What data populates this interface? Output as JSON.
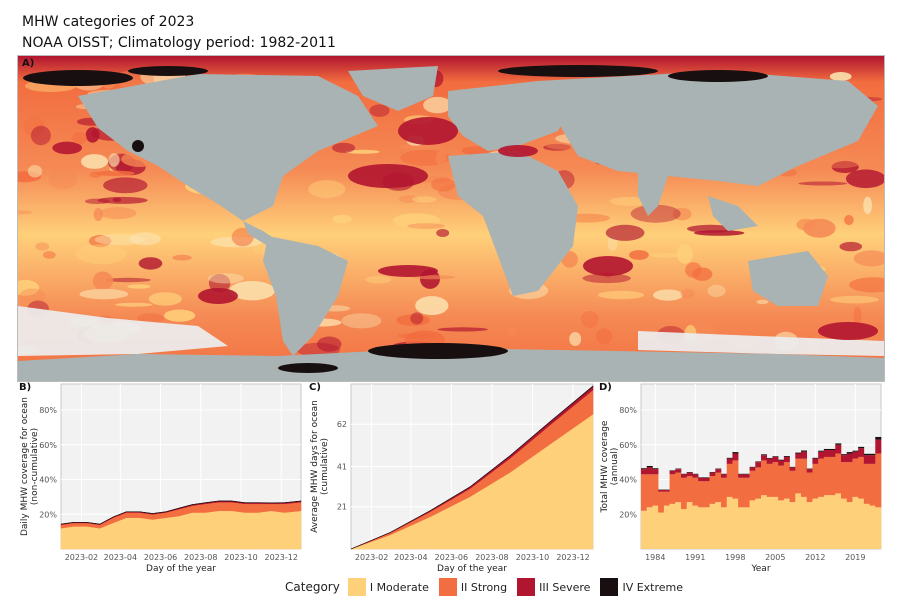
{
  "title": "MHW categories of 2023",
  "subtitle": "NOAA OISST; Climatology period: 1982-2011",
  "colors": {
    "moderate": "#ffd07a",
    "strong": "#f26d3f",
    "severe": "#b21530",
    "extreme": "#181010",
    "land": "#a9b3b3",
    "ice": "#f1f1f1",
    "panel_bg": "#f2f2f2",
    "grid": "#e0e0e0"
  },
  "map": {
    "panel_label": "A)"
  },
  "legend": {
    "title": "Category",
    "items": [
      {
        "label": "I Moderate",
        "color": "#ffd07a"
      },
      {
        "label": "II Strong",
        "color": "#f26d3f"
      },
      {
        "label": "III Severe",
        "color": "#b21530"
      },
      {
        "label": "IV Extreme",
        "color": "#181010"
      }
    ]
  },
  "chart_data": [
    {
      "panel_label": "B)",
      "type": "area",
      "xlabel": "Day of the year",
      "ylabel": "Daily MHW coverage for ocean\n(non-cumulative)",
      "x_ticks": [
        "2023-02",
        "2023-04",
        "2023-06",
        "2023-08",
        "2023-10",
        "2023-12"
      ],
      "x_tick_positions": [
        32,
        91,
        152,
        213,
        274,
        335
      ],
      "y_ticks": [
        "20%",
        "40%",
        "60%",
        "80%"
      ],
      "y_tick_values": [
        0.2,
        0.4,
        0.6,
        0.8
      ],
      "xlim": [
        1,
        365
      ],
      "ylim": [
        0.0,
        0.95
      ],
      "x": [
        1,
        20,
        40,
        60,
        80,
        100,
        120,
        140,
        160,
        180,
        200,
        220,
        240,
        260,
        280,
        300,
        320,
        340,
        365
      ],
      "series": [
        {
          "name": "I Moderate",
          "values": [
            0.12,
            0.13,
            0.13,
            0.12,
            0.15,
            0.18,
            0.18,
            0.17,
            0.18,
            0.19,
            0.21,
            0.21,
            0.22,
            0.22,
            0.21,
            0.21,
            0.22,
            0.21,
            0.22
          ]
        },
        {
          "name": "II Strong",
          "values": [
            0.02,
            0.02,
            0.02,
            0.02,
            0.03,
            0.03,
            0.03,
            0.03,
            0.03,
            0.04,
            0.04,
            0.05,
            0.05,
            0.05,
            0.05,
            0.05,
            0.04,
            0.05,
            0.05
          ]
        },
        {
          "name": "III Severe",
          "values": [
            0.003,
            0.003,
            0.003,
            0.003,
            0.004,
            0.004,
            0.004,
            0.004,
            0.004,
            0.005,
            0.005,
            0.006,
            0.006,
            0.006,
            0.006,
            0.006,
            0.005,
            0.006,
            0.006
          ]
        },
        {
          "name": "IV Extreme",
          "values": [
            0.001,
            0.001,
            0.001,
            0.001,
            0.001,
            0.001,
            0.001,
            0.001,
            0.001,
            0.001,
            0.001,
            0.001,
            0.001,
            0.001,
            0.001,
            0.001,
            0.001,
            0.001,
            0.001
          ]
        }
      ]
    },
    {
      "panel_label": "C)",
      "type": "area",
      "xlabel": "Day of the year",
      "ylabel": "Average MHW days for ocean\n(cumulative)",
      "x_ticks": [
        "2023-02",
        "2023-04",
        "2023-06",
        "2023-08",
        "2023-10",
        "2023-12"
      ],
      "x_tick_positions": [
        32,
        91,
        152,
        213,
        274,
        335
      ],
      "y_ticks": [
        "21",
        "41",
        "62"
      ],
      "y_tick_values": [
        21,
        41,
        62
      ],
      "xlim": [
        1,
        365
      ],
      "ylim": [
        0,
        82
      ],
      "x": [
        1,
        60,
        120,
        180,
        240,
        300,
        365
      ],
      "series": [
        {
          "name": "I Moderate",
          "values": [
            0,
            7,
            16,
            26,
            38,
            52,
            67
          ]
        },
        {
          "name": "II Strong",
          "values": [
            0,
            1,
            2.5,
            4,
            7,
            9.5,
            12
          ]
        },
        {
          "name": "III Severe",
          "values": [
            0,
            0.2,
            0.5,
            0.8,
            1.2,
            1.5,
            1.8
          ]
        },
        {
          "name": "IV Extreme",
          "values": [
            0,
            0.05,
            0.1,
            0.15,
            0.2,
            0.25,
            0.3
          ]
        }
      ]
    },
    {
      "panel_label": "D)",
      "type": "bar",
      "stacked": true,
      "xlabel": "Year",
      "ylabel": "Total MHW coverage\n(annual)",
      "x_ticks": [
        "1984",
        "1991",
        "1998",
        "2005",
        "2012",
        "2019"
      ],
      "y_ticks": [
        "20%",
        "40%",
        "60%",
        "80%"
      ],
      "y_tick_values": [
        0.2,
        0.4,
        0.6,
        0.8
      ],
      "ylim": [
        0.0,
        0.95
      ],
      "categories": [
        1982,
        1983,
        1984,
        1985,
        1986,
        1987,
        1988,
        1989,
        1990,
        1991,
        1992,
        1993,
        1994,
        1995,
        1996,
        1997,
        1998,
        1999,
        2000,
        2001,
        2002,
        2003,
        2004,
        2005,
        2006,
        2007,
        2008,
        2009,
        2010,
        2011,
        2012,
        2013,
        2014,
        2015,
        2016,
        2017,
        2018,
        2019,
        2020,
        2021,
        2022,
        2023
      ],
      "series": [
        {
          "name": "I Moderate",
          "values": [
            0.22,
            0.24,
            0.25,
            0.21,
            0.25,
            0.26,
            0.27,
            0.23,
            0.27,
            0.25,
            0.24,
            0.24,
            0.26,
            0.27,
            0.24,
            0.3,
            0.29,
            0.24,
            0.24,
            0.28,
            0.29,
            0.31,
            0.3,
            0.3,
            0.28,
            0.29,
            0.27,
            0.32,
            0.3,
            0.27,
            0.29,
            0.3,
            0.31,
            0.31,
            0.32,
            0.29,
            0.27,
            0.3,
            0.29,
            0.26,
            0.25,
            0.24
          ]
        },
        {
          "name": "II Strong",
          "values": [
            0.21,
            0.19,
            0.18,
            0.12,
            0.08,
            0.17,
            0.17,
            0.18,
            0.15,
            0.16,
            0.15,
            0.15,
            0.16,
            0.17,
            0.17,
            0.19,
            0.22,
            0.17,
            0.17,
            0.17,
            0.18,
            0.2,
            0.19,
            0.2,
            0.2,
            0.21,
            0.18,
            0.2,
            0.22,
            0.17,
            0.2,
            0.22,
            0.22,
            0.22,
            0.23,
            0.21,
            0.23,
            0.22,
            0.24,
            0.23,
            0.24,
            0.31
          ]
        },
        {
          "name": "III Severe",
          "values": [
            0.03,
            0.04,
            0.03,
            0.01,
            0.01,
            0.02,
            0.02,
            0.02,
            0.02,
            0.02,
            0.02,
            0.02,
            0.02,
            0.02,
            0.02,
            0.03,
            0.04,
            0.02,
            0.02,
            0.02,
            0.03,
            0.03,
            0.03,
            0.03,
            0.03,
            0.03,
            0.02,
            0.03,
            0.04,
            0.02,
            0.03,
            0.04,
            0.04,
            0.04,
            0.05,
            0.04,
            0.05,
            0.04,
            0.05,
            0.05,
            0.05,
            0.08
          ]
        },
        {
          "name": "IV Extreme",
          "values": [
            0.005,
            0.008,
            0.005,
            0.002,
            0.002,
            0.003,
            0.003,
            0.003,
            0.003,
            0.003,
            0.003,
            0.003,
            0.003,
            0.003,
            0.003,
            0.005,
            0.008,
            0.003,
            0.003,
            0.003,
            0.004,
            0.005,
            0.004,
            0.004,
            0.004,
            0.005,
            0.003,
            0.005,
            0.007,
            0.003,
            0.005,
            0.006,
            0.006,
            0.006,
            0.008,
            0.006,
            0.008,
            0.006,
            0.008,
            0.008,
            0.008,
            0.015
          ]
        }
      ]
    }
  ]
}
